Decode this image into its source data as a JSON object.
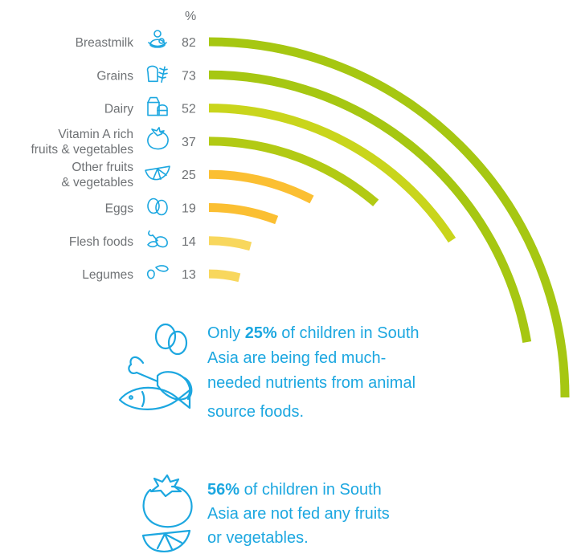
{
  "chart_data": {
    "type": "bar",
    "unit_label": "%",
    "categories": [
      [
        "Breastmilk"
      ],
      [
        "Grains"
      ],
      [
        "Dairy"
      ],
      [
        "Vitamin A rich",
        "fruits & vegetables"
      ],
      [
        "Other fruits",
        "& vegetables"
      ],
      [
        "Eggs"
      ],
      [
        "Flesh foods"
      ],
      [
        "Legumes"
      ]
    ],
    "values": [
      82,
      73,
      52,
      37,
      25,
      19,
      14,
      13
    ],
    "icons": [
      "mother-child-icon",
      "bread-grain-icon",
      "milk-carton-icon",
      "tomato-icon",
      "citrus-slice-icon",
      "eggs-icon",
      "drumstick-icon",
      "bean-icon"
    ],
    "colors": [
      "#a6c712",
      "#a6c712",
      "#c9d51c",
      "#b2ca14",
      "#fbbf32",
      "#fbbf32",
      "#f8d75d",
      "#f8d75d"
    ]
  },
  "notes": [
    {
      "bold": "25%",
      "lines": [
        "Only ",
        " of children in South",
        "Asia are being fed much-",
        "needed nutrients from animal",
        "source foods."
      ]
    },
    {
      "bold": "56%",
      "lines": [
        "",
        " of children in South",
        "Asia are not fed any fruits",
        "or vegetables."
      ]
    }
  ],
  "note_icons": [
    "eggs-meat-fish-icon",
    "tomato-citrus-icon"
  ]
}
